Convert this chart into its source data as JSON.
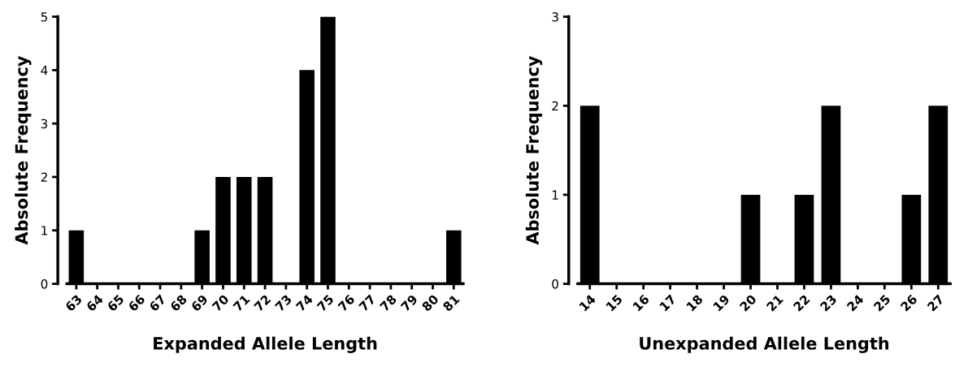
{
  "chart_data": [
    {
      "type": "bar",
      "xlabel": "Expanded Allele Length",
      "ylabel": "Absolute Frequency",
      "categories": [
        "63",
        "64",
        "65",
        "66",
        "67",
        "68",
        "69",
        "70",
        "71",
        "72",
        "73",
        "74",
        "75",
        "76",
        "77",
        "78",
        "79",
        "80",
        "81"
      ],
      "values": [
        1,
        0,
        0,
        0,
        0,
        0,
        1,
        2,
        2,
        2,
        0,
        4,
        5,
        0,
        0,
        0,
        0,
        0,
        1
      ],
      "color": "#000000",
      "ylim": [
        0,
        5
      ],
      "yticks": [
        0,
        1,
        2,
        3,
        4,
        5
      ],
      "grid": false,
      "legend": false
    },
    {
      "type": "bar",
      "xlabel": "Unexpanded Allele Length",
      "ylabel": "Absolute Frequency",
      "categories": [
        "14",
        "15",
        "16",
        "17",
        "18",
        "19",
        "20",
        "21",
        "22",
        "23",
        "24",
        "25",
        "26",
        "27"
      ],
      "values": [
        2,
        0,
        0,
        0,
        0,
        0,
        1,
        0,
        1,
        2,
        0,
        0,
        1,
        2
      ],
      "color": "#000000",
      "ylim": [
        0,
        3
      ],
      "yticks": [
        0,
        1,
        2,
        3
      ],
      "grid": false,
      "legend": false
    }
  ]
}
